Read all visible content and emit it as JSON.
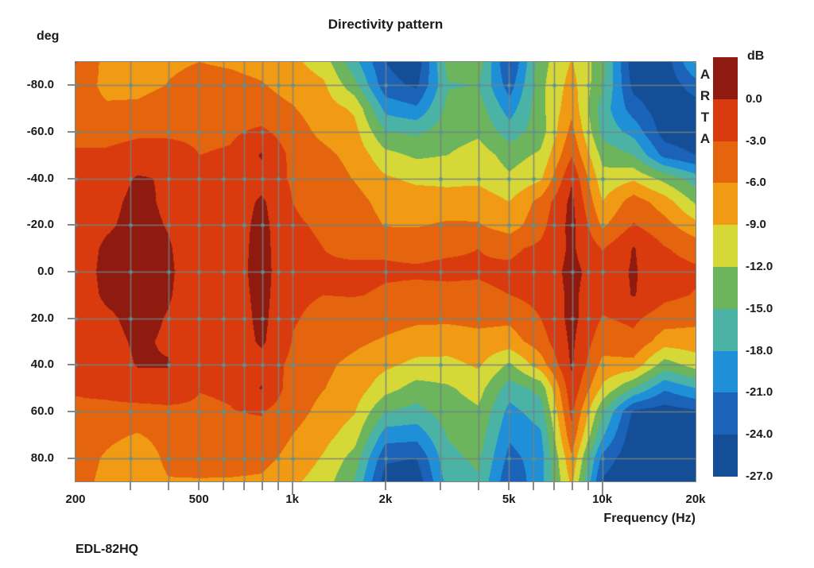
{
  "header": {
    "title": "Directivity pattern"
  },
  "watermark": "A\nR\nT\nA",
  "footer": {
    "label": "EDL-82HQ"
  },
  "y_axis": {
    "title": "deg",
    "tick_labels": [
      "-80.0",
      "-60.0",
      "-40.0",
      "-20.0",
      "0.0",
      "20.0",
      "40.0",
      "60.0",
      "80.0"
    ],
    "tick_values_deg": [
      -80,
      -60,
      -40,
      -20,
      0,
      20,
      40,
      60,
      80
    ]
  },
  "x_axis": {
    "title": "Frequency (Hz)",
    "tick_labels": [
      "200",
      "500",
      "1k",
      "2k",
      "5k",
      "10k",
      "20k"
    ],
    "tick_values_hz": [
      200,
      500,
      1000,
      2000,
      5000,
      10000,
      20000
    ],
    "major_tick_values_hz": [
      1000,
      10000
    ]
  },
  "colorbar": {
    "title": "dB",
    "labels": [
      "0.0",
      "-3.0",
      "-6.0",
      "-9.0",
      "-12.0",
      "-15.0",
      "-18.0",
      "-21.0",
      "-24.0",
      "-27.0"
    ],
    "colors": [
      "#8e1a10",
      "#da3b0e",
      "#e4650e",
      "#f09b13",
      "#d6d838",
      "#6cb55c",
      "#4ab3a6",
      "#1f8fd8",
      "#1a63b8",
      "#134e96"
    ]
  },
  "chart_data": {
    "type": "heatmap",
    "title": "Directivity pattern",
    "xlabel": "Frequency (Hz)",
    "ylabel": "deg",
    "x_scale": "log",
    "x_range_hz": [
      200,
      20000
    ],
    "y_range_deg": [
      -90,
      90
    ],
    "band_step_db": 3,
    "band_edges_db": [
      0,
      -3,
      -6,
      -9,
      -12,
      -15,
      -18,
      -21,
      -24,
      -27
    ],
    "band_colors": [
      "#8e1a10",
      "#da3b0e",
      "#e4650e",
      "#f09b13",
      "#d6d838",
      "#6cb55c",
      "#4ab3a6",
      "#1f8fd8",
      "#1a63b8",
      "#134e96"
    ],
    "grid_color": "#788282",
    "grid_dot_color": "#4e98a0",
    "grid_frequencies_hz": [
      300,
      400,
      500,
      600,
      700,
      800,
      900,
      1000,
      2000,
      3000,
      4000,
      5000,
      6000,
      7000,
      8000,
      9000,
      10000
    ],
    "grid_angles_deg": [
      -80,
      -60,
      -40,
      -20,
      0,
      20,
      40,
      60,
      80
    ],
    "x_frequencies_hz": [
      200,
      250,
      315,
      400,
      500,
      630,
      800,
      1000,
      1250,
      1600,
      2000,
      2500,
      3150,
      4000,
      5000,
      6300,
      8000,
      10000,
      12500,
      16000,
      20000
    ],
    "y_angles_deg": [
      -90,
      -80,
      -70,
      -60,
      -50,
      -40,
      -30,
      -20,
      -10,
      0,
      10,
      20,
      30,
      40,
      50,
      60,
      70,
      80,
      90
    ],
    "values_db": [
      [
        -2.8,
        -7.0,
        -7.3,
        -6.4,
        -6.0,
        -6.3,
        -6.8,
        -8.3,
        -10.5,
        -17.0,
        -24.0,
        -26.0,
        -14.0,
        -13.4,
        -24.5,
        -13.2,
        -8.8,
        -13.8,
        -26.0,
        -26.0,
        -17.5
      ],
      [
        -4.2,
        -6.8,
        -6.9,
        -5.9,
        -5.2,
        -5.3,
        -5.8,
        -7.0,
        -8.5,
        -14.0,
        -23.0,
        -24.5,
        -15.2,
        -15.0,
        -22.5,
        -12.8,
        -7.8,
        -14.5,
        -25.0,
        -26.0,
        -22.5
      ],
      [
        -4.5,
        -5.6,
        -5.4,
        -4.5,
        -4.6,
        -4.6,
        -4.8,
        -5.8,
        -7.5,
        -9.5,
        -19.0,
        -20.5,
        -14.2,
        -13.6,
        -19.5,
        -13.0,
        -6.8,
        -16.5,
        -22.5,
        -26.0,
        -25.5
      ],
      [
        -3.2,
        -3.8,
        -3.4,
        -3.8,
        -3.8,
        -3.5,
        -2.4,
        -4.6,
        -6.8,
        -8.0,
        -15.0,
        -15.5,
        -13.5,
        -12.6,
        -16.5,
        -13.5,
        -5.0,
        -16.0,
        -19.0,
        -25.5,
        -26.5
      ],
      [
        -2.9,
        -2.6,
        -2.0,
        -1.0,
        -3.0,
        -2.6,
        0.3,
        -3.8,
        -5.2,
        -7.0,
        -11.0,
        -12.5,
        -12.0,
        -10.5,
        -13.2,
        -11.5,
        -3.2,
        -13.0,
        -15.0,
        -22.0,
        -24.0
      ],
      [
        -2.6,
        -1.6,
        0.3,
        -0.3,
        -2.8,
        -2.3,
        -1.2,
        -3.4,
        -4.2,
        -6.2,
        -8.6,
        -9.6,
        -9.5,
        -9.8,
        -11.5,
        -9.5,
        -0.3,
        -11.0,
        -9.5,
        -13.0,
        -16.5
      ],
      [
        -2.3,
        -1.0,
        0.9,
        -0.6,
        -2.5,
        -2.0,
        0.5,
        -3.0,
        -3.6,
        -4.8,
        -7.2,
        -7.5,
        -8.2,
        -7.2,
        -9.0,
        -5.0,
        0.8,
        -9.0,
        -4.5,
        -7.5,
        -12.5
      ],
      [
        -2.1,
        -0.5,
        1.1,
        -0.2,
        -2.2,
        -1.8,
        1.0,
        -2.8,
        -3.2,
        -4.0,
        -6.2,
        -6.3,
        -5.5,
        -5.8,
        -7.5,
        -4.0,
        1.0,
        -6.5,
        -2.8,
        -5.0,
        -8.0
      ],
      [
        -1.9,
        0.6,
        1.4,
        0.3,
        -2.1,
        -1.6,
        1.1,
        -2.6,
        -3.0,
        -3.4,
        -3.2,
        -3.4,
        -3.2,
        -3.0,
        -3.5,
        -2.4,
        0.5,
        -3.2,
        0.2,
        -2.8,
        -4.2
      ],
      [
        -1.8,
        0.9,
        1.5,
        0.5,
        -2.0,
        -1.5,
        1.2,
        -2.5,
        -2.8,
        -2.6,
        -2.8,
        -2.8,
        -2.7,
        -2.8,
        -2.5,
        -1.8,
        0.8,
        -1.5,
        0.3,
        -1.8,
        -2.4
      ],
      [
        -1.9,
        0.6,
        1.3,
        0.3,
        -2.1,
        -1.7,
        1.0,
        -2.6,
        -3.0,
        -2.9,
        -3.2,
        -3.4,
        -3.4,
        -3.4,
        -3.0,
        -2.0,
        0.6,
        -2.0,
        0.2,
        -2.2,
        -3.2
      ],
      [
        -2.1,
        -0.6,
        1.0,
        -0.2,
        -2.3,
        -1.9,
        0.8,
        -2.8,
        -3.6,
        -4.0,
        -4.8,
        -5.4,
        -5.5,
        -5.2,
        -5.4,
        -3.0,
        0.9,
        -3.2,
        -2.4,
        -4.6,
        -5.2
      ],
      [
        -2.3,
        -1.1,
        0.5,
        -0.4,
        -2.5,
        -2.1,
        0.5,
        -3.1,
        -4.4,
        -5.4,
        -6.4,
        -7.4,
        -7.5,
        -7.0,
        -7.4,
        -4.4,
        0.6,
        -4.8,
        -3.8,
        -7.6,
        -7.4
      ],
      [
        -2.5,
        -1.8,
        0.2,
        0.2,
        -2.7,
        -2.4,
        -1.2,
        -3.7,
        -5.4,
        -6.8,
        -8.4,
        -9.8,
        -9.9,
        -8.6,
        -12.5,
        -7.5,
        0.4,
        -6.8,
        -7.0,
        -13.5,
        -10.8
      ],
      [
        -2.8,
        -2.4,
        -1.6,
        -1.4,
        -2.9,
        -2.7,
        0.2,
        -4.4,
        -5.9,
        -7.4,
        -10.8,
        -13.2,
        -12.4,
        -10.8,
        -16.5,
        -14.0,
        -0.8,
        -9.5,
        -15.0,
        -20.5,
        -18.0
      ],
      [
        -3.4,
        -3.6,
        -3.8,
        -3.6,
        -3.4,
        -3.1,
        -2.8,
        -4.8,
        -6.9,
        -8.8,
        -15.0,
        -16.0,
        -13.5,
        -12.4,
        -19.0,
        -16.5,
        -2.2,
        -14.5,
        -24.5,
        -25.5,
        -24.5
      ],
      [
        -4.0,
        -5.2,
        -6.2,
        -4.8,
        -3.8,
        -3.6,
        -3.8,
        -6.0,
        -7.9,
        -10.5,
        -19.5,
        -19.8,
        -14.8,
        -13.4,
        -20.5,
        -18.5,
        -3.8,
        -17.5,
        -26.0,
        -26.0,
        -26.0
      ],
      [
        -4.4,
        -6.4,
        -8.2,
        -5.2,
        -4.8,
        -4.6,
        -5.0,
        -7.0,
        -9.3,
        -13.2,
        -23.5,
        -24.0,
        -15.8,
        -14.4,
        -22.0,
        -19.5,
        -6.4,
        -22.0,
        -26.5,
        -26.5,
        -26.8
      ],
      [
        -4.8,
        -6.8,
        -8.0,
        -6.2,
        -6.2,
        -6.3,
        -6.5,
        -8.4,
        -10.4,
        -15.2,
        -25.5,
        -26.0,
        -16.8,
        -15.4,
        -23.5,
        -19.0,
        -8.3,
        -24.5,
        -27.0,
        -27.0,
        -27.2
      ]
    ]
  }
}
